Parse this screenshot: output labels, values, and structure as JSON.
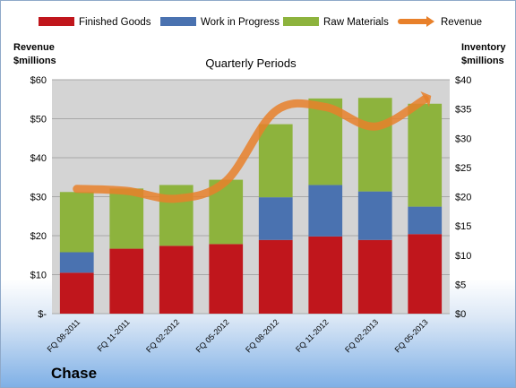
{
  "company": "Chase",
  "chart_data": {
    "type": "bar",
    "stacked": true,
    "title": "Quarterly Periods",
    "categories": [
      "FQ 08-2011",
      "FQ 11-2011",
      "FQ 02-2012",
      "FQ 05-2012",
      "FQ 08-2012",
      "FQ 11-2012",
      "FQ 02-2013",
      "FQ 05-2013"
    ],
    "series": [
      {
        "name": "Finished Goods",
        "color": "#c0161c",
        "values": [
          7.0,
          11.1,
          11.6,
          11.9,
          12.6,
          13.2,
          12.6,
          13.6
        ]
      },
      {
        "name": "Work in Progress",
        "color": "#4a72b0",
        "values": [
          3.5,
          0,
          0,
          0,
          7.3,
          8.8,
          8.3,
          4.7
        ]
      },
      {
        "name": "Raw Materials",
        "color": "#8db33d",
        "values": [
          10.3,
          10.3,
          10.4,
          11.0,
          12.5,
          14.8,
          16.0,
          17.6
        ]
      }
    ],
    "line_series": {
      "name": "Revenue",
      "color": "#e8802a",
      "axis": "left",
      "values": [
        32.0,
        31.5,
        29.5,
        34.0,
        52.0,
        53.0,
        48.0,
        55.0
      ]
    },
    "ylabel_left": [
      "Revenue",
      "$millions"
    ],
    "ylabel_right": [
      "Inventory",
      "$millions"
    ],
    "ylim_left": [
      0,
      60
    ],
    "ylim_right": [
      0,
      40
    ],
    "yticks_left": [
      "$-",
      "$10",
      "$20",
      "$30",
      "$40",
      "$50",
      "$60"
    ],
    "yticks_right": [
      "$0",
      "$5",
      "$10",
      "$15",
      "$20",
      "$25",
      "$30",
      "$35",
      "$40"
    ],
    "grid": true,
    "legend_position": "top"
  }
}
